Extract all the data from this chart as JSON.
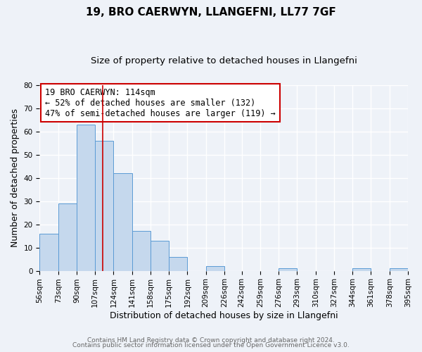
{
  "title": "19, BRO CAERWYN, LLANGEFNI, LL77 7GF",
  "subtitle": "Size of property relative to detached houses in Llangefni",
  "xlabel": "Distribution of detached houses by size in Llangefni",
  "ylabel": "Number of detached properties",
  "bin_edges": [
    56,
    73,
    90,
    107,
    124,
    141,
    158,
    175,
    192,
    209,
    226,
    242,
    259,
    276,
    293,
    310,
    327,
    344,
    361,
    378,
    395
  ],
  "bar_heights": [
    16,
    29,
    63,
    56,
    42,
    17,
    13,
    6,
    0,
    2,
    0,
    0,
    0,
    1,
    0,
    0,
    0,
    1,
    0,
    1
  ],
  "bar_color": "#c5d8ed",
  "bar_edge_color": "#5b9bd5",
  "property_size": 114,
  "red_line_color": "#cc0000",
  "annotation_text": "19 BRO CAERWYN: 114sqm\n← 52% of detached houses are smaller (132)\n47% of semi-detached houses are larger (119) →",
  "annotation_box_color": "#ffffff",
  "annotation_box_edge_color": "#cc0000",
  "ylim": [
    0,
    80
  ],
  "yticks": [
    0,
    10,
    20,
    30,
    40,
    50,
    60,
    70,
    80
  ],
  "footer_line1": "Contains HM Land Registry data © Crown copyright and database right 2024.",
  "footer_line2": "Contains public sector information licensed under the Open Government Licence v3.0.",
  "background_color": "#eef2f8",
  "grid_color": "#ffffff",
  "title_fontsize": 11,
  "subtitle_fontsize": 9.5,
  "label_fontsize": 9,
  "tick_fontsize": 7.5,
  "annotation_fontsize": 8.5,
  "footer_fontsize": 6.5
}
